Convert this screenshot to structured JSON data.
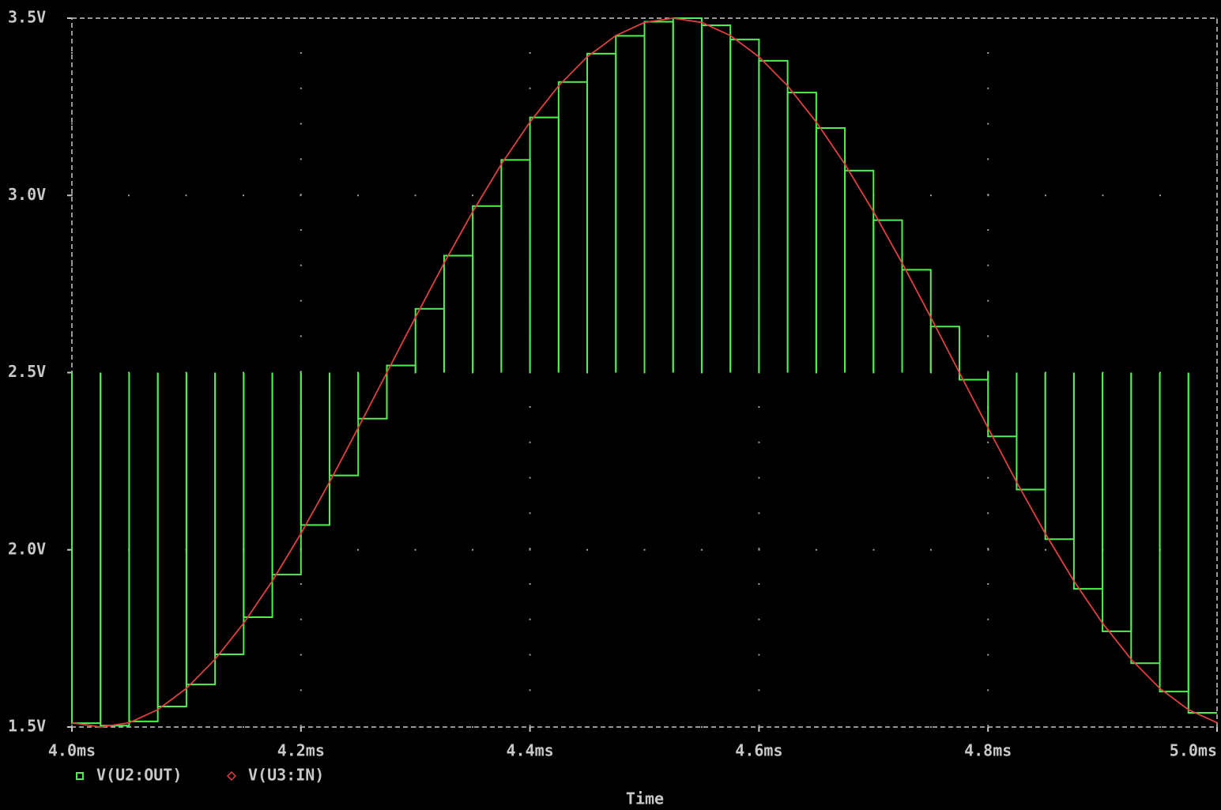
{
  "chart_data": {
    "type": "line",
    "xlabel": "Time",
    "xlim": [
      4.0,
      5.0
    ],
    "xticks": [
      {
        "value": 4.0,
        "label": "4.0ms"
      },
      {
        "value": 4.2,
        "label": "4.2ms"
      },
      {
        "value": 4.4,
        "label": "4.4ms"
      },
      {
        "value": 4.6,
        "label": "4.6ms"
      },
      {
        "value": 4.8,
        "label": "4.8ms"
      },
      {
        "value": 5.0,
        "label": "5.0ms"
      }
    ],
    "ylim": [
      1.5,
      3.5
    ],
    "yticks": [
      {
        "value": 1.5,
        "label": "1.5V"
      },
      {
        "value": 2.0,
        "label": "2.0V"
      },
      {
        "value": 2.5,
        "label": "2.5V"
      },
      {
        "value": 3.0,
        "label": "3.0V"
      },
      {
        "value": 3.5,
        "label": "3.5V"
      }
    ],
    "grid": true,
    "legend": "bottom-left",
    "series": [
      {
        "name": "V(U2:OUT)",
        "color": "#50f050",
        "style": "sample-hold",
        "marker": "square",
        "pulse_level": 2.5,
        "x": [
          4.0,
          4.025,
          4.05,
          4.075,
          4.1,
          4.125,
          4.15,
          4.175,
          4.2,
          4.225,
          4.25,
          4.275,
          4.3,
          4.325,
          4.35,
          4.375,
          4.4,
          4.425,
          4.45,
          4.475,
          4.5,
          4.525,
          4.55,
          4.575,
          4.6,
          4.625,
          4.65,
          4.675,
          4.7,
          4.725,
          4.75,
          4.775,
          4.8,
          4.825,
          4.85,
          4.875,
          4.9,
          4.925,
          4.95,
          4.975
        ],
        "values": [
          1.511,
          1.504,
          1.516,
          1.558,
          1.62,
          1.705,
          1.81,
          1.93,
          2.07,
          2.21,
          2.37,
          2.52,
          2.68,
          2.83,
          2.97,
          3.1,
          3.22,
          3.32,
          3.4,
          3.45,
          3.49,
          3.5,
          3.48,
          3.44,
          3.38,
          3.29,
          3.19,
          3.07,
          2.93,
          2.79,
          2.63,
          2.48,
          2.32,
          2.17,
          2.03,
          1.89,
          1.77,
          1.68,
          1.6,
          1.54
        ]
      },
      {
        "name": "V(U3:IN)",
        "color": "#e04040",
        "style": "line",
        "marker": "diamond",
        "x": [
          4.0,
          4.025,
          4.05,
          4.075,
          4.1,
          4.125,
          4.15,
          4.175,
          4.2,
          4.225,
          4.25,
          4.275,
          4.3,
          4.325,
          4.35,
          4.375,
          4.4,
          4.425,
          4.45,
          4.475,
          4.5,
          4.525,
          4.55,
          4.575,
          4.6,
          4.625,
          4.65,
          4.675,
          4.7,
          4.725,
          4.75,
          4.775,
          4.8,
          4.825,
          4.85,
          4.875,
          4.9,
          4.925,
          4.95,
          4.975,
          5.0
        ],
        "values": [
          1.512,
          1.5,
          1.512,
          1.549,
          1.609,
          1.691,
          1.793,
          1.912,
          2.046,
          2.191,
          2.344,
          2.5,
          2.656,
          2.809,
          2.954,
          3.088,
          3.207,
          3.309,
          3.391,
          3.451,
          3.488,
          3.5,
          3.488,
          3.451,
          3.391,
          3.309,
          3.207,
          3.088,
          2.954,
          2.809,
          2.656,
          2.5,
          2.344,
          2.191,
          2.046,
          1.912,
          1.793,
          1.691,
          1.609,
          1.549,
          1.512
        ]
      }
    ]
  }
}
